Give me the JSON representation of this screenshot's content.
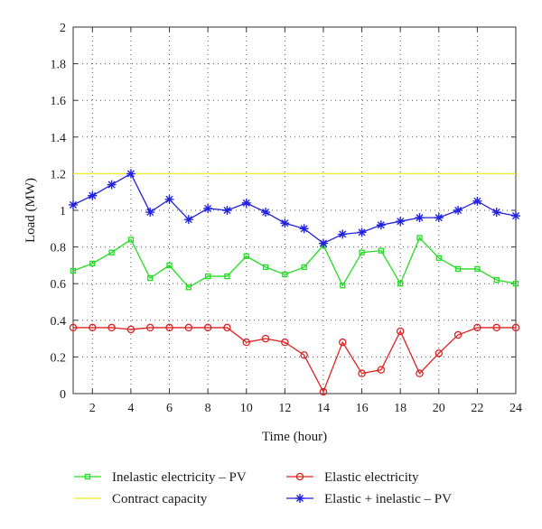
{
  "chart_data": {
    "type": "line",
    "xlabel": "Time (hour)",
    "ylabel": "Load (MW)",
    "xlim": [
      1,
      24
    ],
    "ylim": [
      0,
      2
    ],
    "x_ticks": [
      2,
      4,
      6,
      8,
      10,
      12,
      14,
      16,
      18,
      20,
      22,
      24
    ],
    "y_ticks": [
      0,
      0.2,
      0.4,
      0.6,
      0.8,
      1,
      1.2,
      1.4,
      1.6,
      1.8,
      2
    ],
    "y_tick_labels": [
      "0",
      "0.2",
      "0.4",
      "0.6",
      "0.8",
      "1",
      "1.2",
      "1.4",
      "1.6",
      "1.8",
      "2"
    ],
    "grid": true,
    "legend_position": "bottom",
    "x": [
      1,
      2,
      3,
      4,
      5,
      6,
      7,
      8,
      9,
      10,
      11,
      12,
      13,
      14,
      15,
      16,
      17,
      18,
      19,
      20,
      21,
      22,
      23,
      24
    ],
    "series": [
      {
        "name": "Inelastic electricity – PV",
        "color": "#22dd22",
        "marker": "square",
        "values": [
          0.67,
          0.71,
          0.77,
          0.84,
          0.63,
          0.7,
          0.58,
          0.64,
          0.64,
          0.75,
          0.69,
          0.65,
          0.69,
          0.81,
          0.59,
          0.77,
          0.78,
          0.6,
          0.85,
          0.74,
          0.68,
          0.68,
          0.62,
          0.6
        ]
      },
      {
        "name": "Elastic electricity",
        "color": "#dd2222",
        "marker": "circle",
        "values": [
          0.36,
          0.36,
          0.36,
          0.35,
          0.36,
          0.36,
          0.36,
          0.36,
          0.36,
          0.28,
          0.3,
          0.28,
          0.21,
          0.01,
          0.28,
          0.11,
          0.13,
          0.34,
          0.11,
          0.22,
          0.32,
          0.36,
          0.36,
          0.36
        ]
      },
      {
        "name": "Contract capacity",
        "color": "#eeee22",
        "marker": "none",
        "values": [
          1.2,
          1.2,
          1.2,
          1.2,
          1.2,
          1.2,
          1.2,
          1.2,
          1.2,
          1.2,
          1.2,
          1.2,
          1.2,
          1.2,
          1.2,
          1.2,
          1.2,
          1.2,
          1.2,
          1.2,
          1.2,
          1.2,
          1.2,
          1.2
        ]
      },
      {
        "name": "Elastic + inelastic – PV",
        "color": "#2222dd",
        "marker": "star",
        "values": [
          1.03,
          1.08,
          1.14,
          1.2,
          0.99,
          1.06,
          0.95,
          1.01,
          1.0,
          1.04,
          0.99,
          0.93,
          0.9,
          0.82,
          0.87,
          0.88,
          0.92,
          0.94,
          0.96,
          0.96,
          1.0,
          1.05,
          0.99,
          0.97
        ]
      }
    ]
  }
}
